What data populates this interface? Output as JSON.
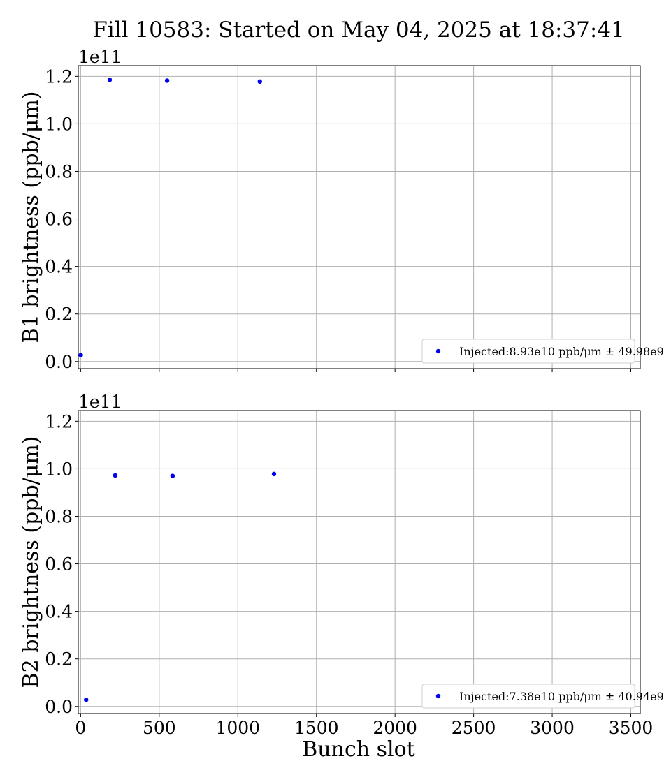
{
  "chart_data": {
    "type": "scatter",
    "title": "Fill 10583: Started on May 04, 2025 at 18:37:41",
    "grid": true,
    "shared_x": true,
    "xlabel": "Bunch slot",
    "xlim": [
      -15,
      3560
    ],
    "xticks": [
      0,
      500,
      1000,
      1500,
      2000,
      2500,
      3000,
      3500
    ],
    "xtick_labels": [
      "0",
      "500",
      "1000",
      "1500",
      "2000",
      "2500",
      "3000",
      "3500"
    ],
    "color": "#0000ee",
    "panels": [
      {
        "ylabel": "B1 brightness (ppb/μm)",
        "offset_text": "1e11",
        "ylim": [
          -0.03,
          1.245
        ],
        "yticks": [
          0.0,
          0.2,
          0.4,
          0.6,
          0.8,
          1.0,
          1.2
        ],
        "ytick_labels": [
          "0.0",
          "0.2",
          "0.4",
          "0.6",
          "0.8",
          "1.0",
          "1.2"
        ],
        "legend_position": "lower right",
        "series": [
          {
            "name": "Injected:8.93e10 ppb/μm ± 49.98e9",
            "x": [
              1,
              185,
              550,
              1140
            ],
            "y": [
              0.027,
              1.185,
              1.182,
              1.178
            ]
          }
        ]
      },
      {
        "ylabel": "B2 brightness (ppb/μm)",
        "offset_text": "1e11",
        "ylim": [
          -0.03,
          1.245
        ],
        "yticks": [
          0.0,
          0.2,
          0.4,
          0.6,
          0.8,
          1.0,
          1.2
        ],
        "ytick_labels": [
          "0.0",
          "0.2",
          "0.4",
          "0.6",
          "0.8",
          "1.0",
          "1.2"
        ],
        "legend_position": "lower right",
        "series": [
          {
            "name": "Injected:7.38e10 ppb/μm ± 40.94e9",
            "x": [
              35,
              220,
              585,
              1230
            ],
            "y": [
              0.028,
              0.972,
              0.97,
              0.978
            ]
          }
        ]
      }
    ]
  }
}
